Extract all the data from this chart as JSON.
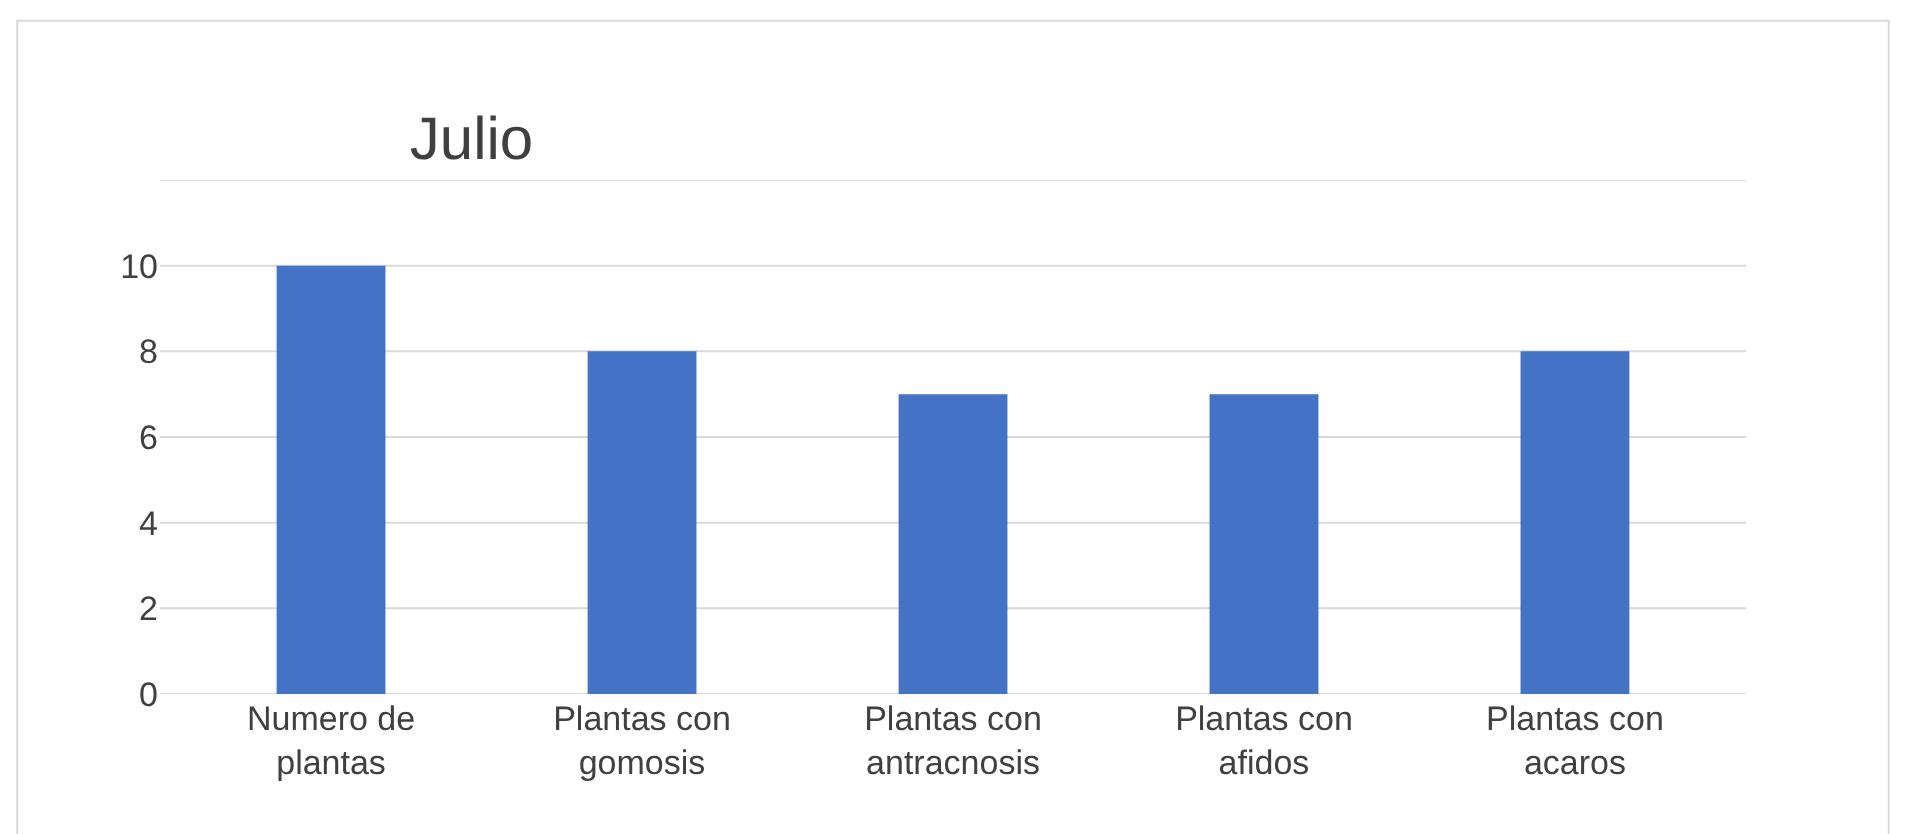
{
  "chart_data": {
    "type": "bar",
    "title": "Julio",
    "categories": [
      "Numero de plantas",
      "Plantas con gomosis",
      "Plantas con antracnosis",
      "Plantas con afidos",
      "Plantas con acaros"
    ],
    "values": [
      10,
      8,
      7,
      7,
      8
    ],
    "color": "#4472c4",
    "ylim": [
      0,
      12
    ],
    "yticks": [
      0,
      2,
      4,
      6,
      8,
      10,
      {
        "value": 12,
        "label": null
      }
    ],
    "grid": "y"
  }
}
